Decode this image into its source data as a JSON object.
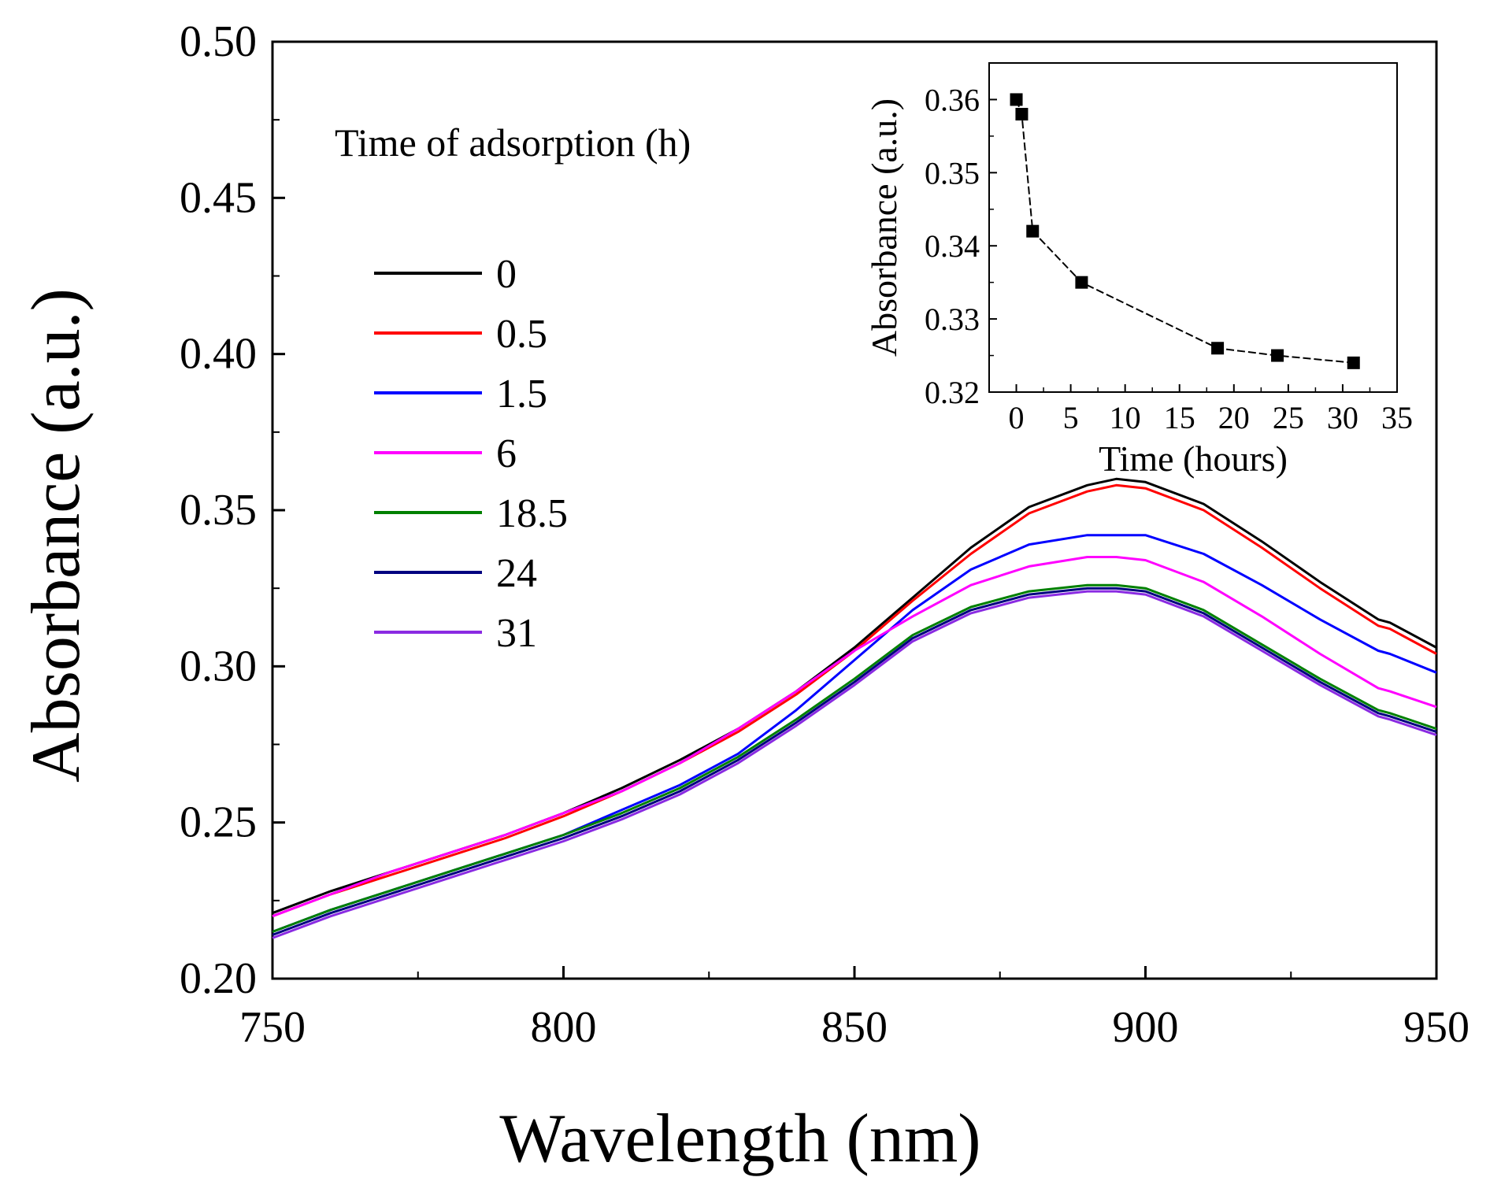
{
  "chart_data": [
    {
      "type": "line",
      "title": "",
      "xlabel": "Wavelength (nm)",
      "ylabel": "Absorbance (a.u.)",
      "xlim": [
        750,
        950
      ],
      "ylim": [
        0.2,
        0.5
      ],
      "xticks": [
        "750",
        "800",
        "850",
        "900",
        "950"
      ],
      "yticks": [
        "0.20",
        "0.25",
        "0.30",
        "0.35",
        "0.40",
        "0.45",
        "0.50"
      ],
      "legend_title": "Time of adsorption (h)",
      "legend_position": "top-left",
      "x": [
        750,
        760,
        770,
        780,
        790,
        800,
        810,
        820,
        830,
        840,
        850,
        860,
        870,
        880,
        890,
        895,
        900,
        910,
        920,
        930,
        940,
        942,
        950
      ],
      "series": [
        {
          "name": "0",
          "color": "#000000",
          "values": [
            0.221,
            0.228,
            0.234,
            0.24,
            0.246,
            0.253,
            0.261,
            0.27,
            0.28,
            0.292,
            0.306,
            0.322,
            0.338,
            0.351,
            0.358,
            0.36,
            0.359,
            0.352,
            0.34,
            0.327,
            0.315,
            0.314,
            0.306
          ]
        },
        {
          "name": "0.5",
          "color": "#ff0000",
          "values": [
            0.22,
            0.227,
            0.233,
            0.239,
            0.245,
            0.252,
            0.26,
            0.269,
            0.279,
            0.291,
            0.305,
            0.321,
            0.336,
            0.349,
            0.356,
            0.358,
            0.357,
            0.35,
            0.338,
            0.325,
            0.313,
            0.312,
            0.304
          ]
        },
        {
          "name": "1.5",
          "color": "#0000ff",
          "values": [
            0.215,
            0.222,
            0.228,
            0.234,
            0.24,
            0.246,
            0.254,
            0.262,
            0.272,
            0.286,
            0.302,
            0.318,
            0.331,
            0.339,
            0.342,
            0.342,
            0.342,
            0.336,
            0.326,
            0.315,
            0.305,
            0.304,
            0.298
          ]
        },
        {
          "name": "6",
          "color": "#ff00ff",
          "values": [
            0.22,
            0.227,
            0.234,
            0.24,
            0.246,
            0.253,
            0.26,
            0.269,
            0.28,
            0.292,
            0.305,
            0.316,
            0.326,
            0.332,
            0.335,
            0.335,
            0.334,
            0.327,
            0.316,
            0.304,
            0.293,
            0.292,
            0.287
          ]
        },
        {
          "name": "18.5",
          "color": "#008000",
          "values": [
            0.215,
            0.222,
            0.228,
            0.234,
            0.24,
            0.246,
            0.253,
            0.261,
            0.271,
            0.283,
            0.296,
            0.31,
            0.319,
            0.324,
            0.326,
            0.326,
            0.325,
            0.318,
            0.307,
            0.296,
            0.286,
            0.285,
            0.28
          ]
        },
        {
          "name": "24",
          "color": "#000080",
          "values": [
            0.214,
            0.221,
            0.227,
            0.233,
            0.239,
            0.245,
            0.252,
            0.26,
            0.27,
            0.282,
            0.295,
            0.309,
            0.318,
            0.323,
            0.325,
            0.325,
            0.324,
            0.317,
            0.306,
            0.295,
            0.285,
            0.284,
            0.279
          ]
        },
        {
          "name": "31",
          "color": "#8a2be2",
          "values": [
            0.213,
            0.22,
            0.226,
            0.232,
            0.238,
            0.244,
            0.251,
            0.259,
            0.269,
            0.281,
            0.294,
            0.308,
            0.317,
            0.322,
            0.324,
            0.324,
            0.323,
            0.316,
            0.305,
            0.294,
            0.284,
            0.283,
            0.278
          ]
        }
      ]
    },
    {
      "type": "scatter",
      "title": "",
      "xlabel": "Time (hours)",
      "ylabel": "Absorbance (a.u.)",
      "xlim": [
        -2.5,
        35
      ],
      "ylim": [
        0.32,
        0.365
      ],
      "xticks": [
        "0",
        "5",
        "10",
        "15",
        "20",
        "25",
        "30",
        "35"
      ],
      "yticks": [
        "0.32",
        "0.33",
        "0.34",
        "0.35",
        "0.36"
      ],
      "x": [
        0,
        0.5,
        1.5,
        6,
        18.5,
        24,
        31
      ],
      "y": [
        0.36,
        0.358,
        0.342,
        0.335,
        0.326,
        0.325,
        0.324
      ],
      "line_style": "dashed",
      "color": "#000000"
    }
  ]
}
